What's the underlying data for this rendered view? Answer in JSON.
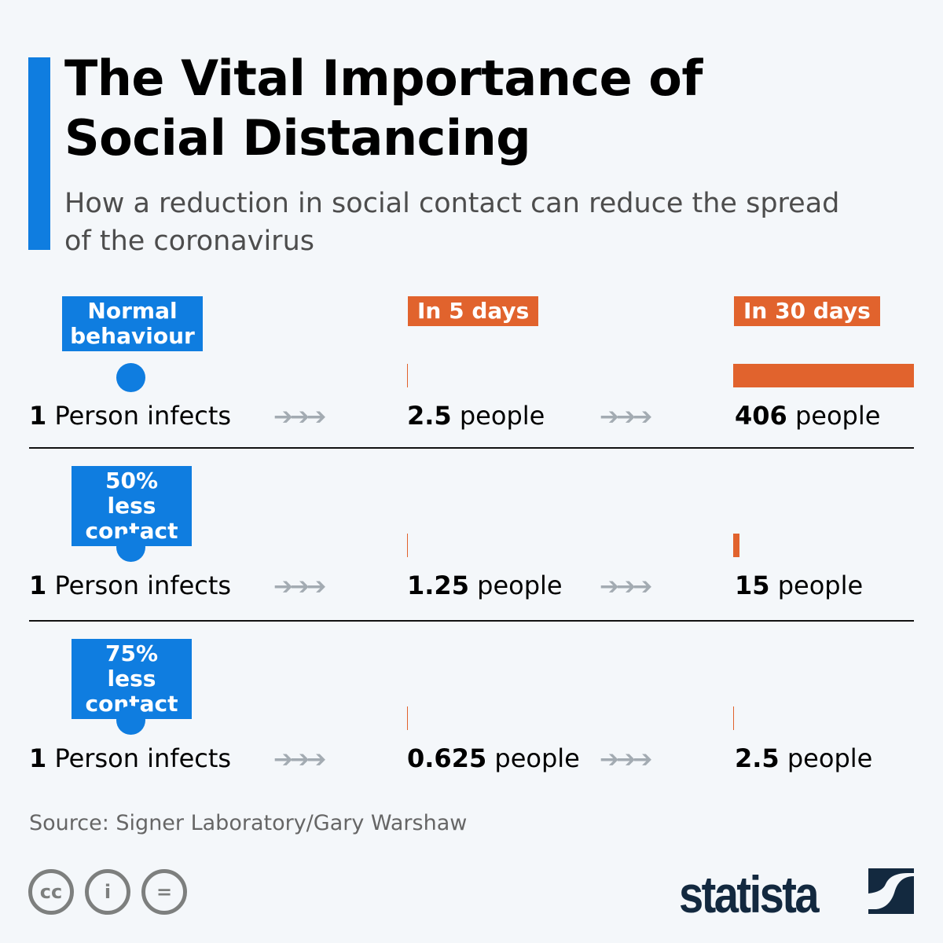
{
  "title": "The Vital Importance of Social Distancing",
  "subtitle": "How a reduction in social contact can reduce the spread of the coronavirus",
  "headers": {
    "day5": "In 5 days",
    "day30": "In 30 days"
  },
  "colors": {
    "accent": "#0f7de0",
    "bar": "#e1632d",
    "logo": "#13293f"
  },
  "chart_data": {
    "type": "bar",
    "unit": "people",
    "rows": [
      {
        "label": "Normal behaviour",
        "start_bold": "1",
        "start_text": "Person infects",
        "day5": 2.5,
        "day30": 406,
        "day5_text": "2.5",
        "day30_text": "406"
      },
      {
        "label": "50% less contact",
        "start_bold": "1",
        "start_text": "Person infects",
        "day5": 1.25,
        "day30": 15,
        "day5_text": "1.25",
        "day30_text": "15"
      },
      {
        "label": "75% less contact",
        "start_bold": "1",
        "start_text": "Person infects",
        "day5": 0.625,
        "day30": 2.5,
        "day5_text": "0.625",
        "day30_text": "2.5"
      }
    ]
  },
  "people_word": "people",
  "arrows": "➔➔➔",
  "source": "Source: Signer Laboratory/Gary Warshaw",
  "license_icons": [
    "cc-icon",
    "attribution-icon",
    "no-derivatives-icon"
  ],
  "license_glyphs": {
    "cc": "cc",
    "by": "i",
    "nd": "="
  },
  "logo": "statista"
}
